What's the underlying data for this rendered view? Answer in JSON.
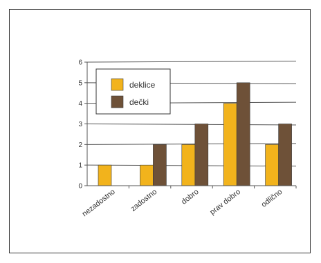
{
  "colors": {
    "deklice": "#f2b31c",
    "decki": "#6e5138",
    "grid": "#555555",
    "axis_text": "#333333"
  },
  "chart_data": {
    "type": "bar",
    "categories": [
      "nezadostno",
      "zadostno",
      "dobro",
      "prav dobro",
      "odlično"
    ],
    "series": [
      {
        "name": "deklice",
        "values": [
          1,
          1,
          2,
          4,
          2
        ]
      },
      {
        "name": "dečki",
        "values": [
          0,
          2,
          3,
          5,
          3
        ]
      }
    ],
    "y_ticks": [
      "0",
      "1",
      "2",
      "3",
      "4",
      "5",
      "6"
    ],
    "ylim": [
      0,
      6
    ],
    "grid": true,
    "legend_position": "top-left"
  }
}
